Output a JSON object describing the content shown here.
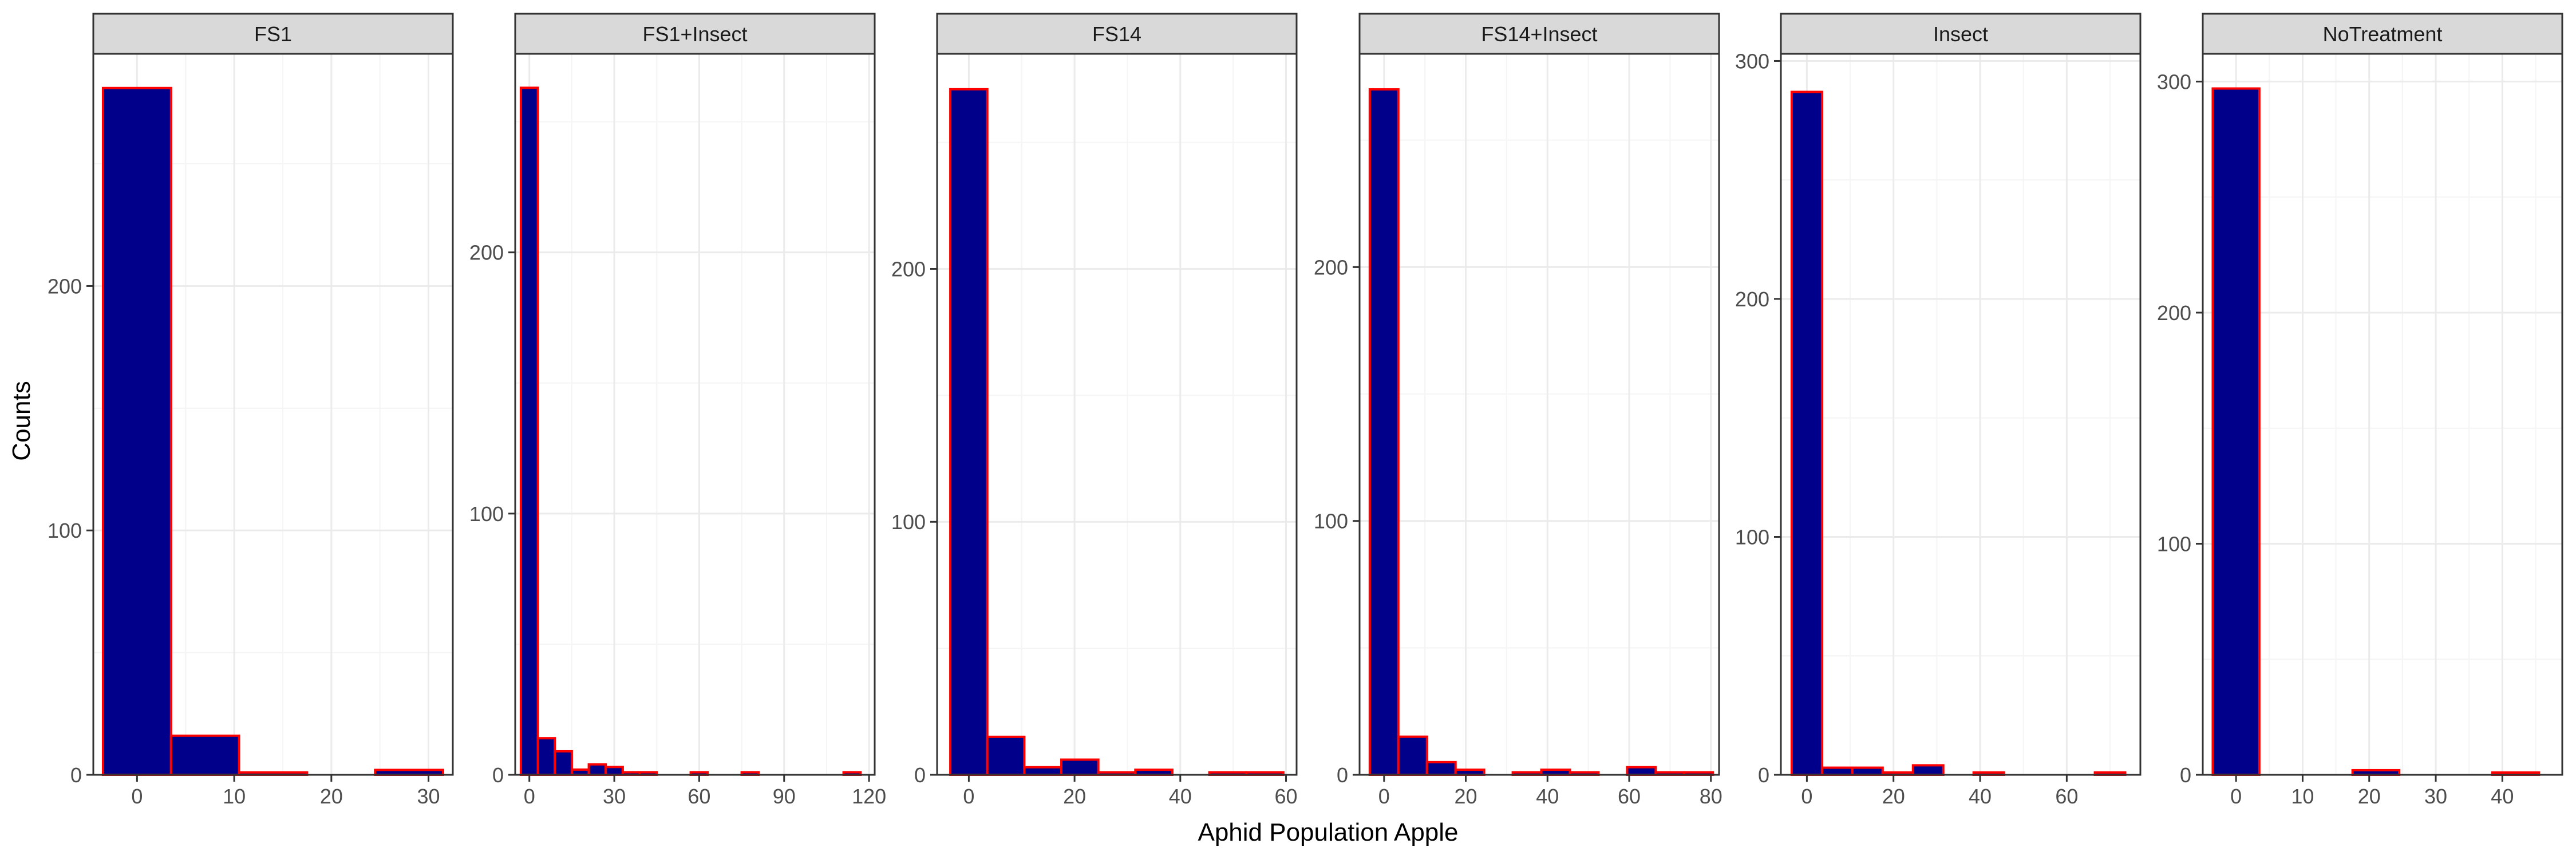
{
  "chart_data": {
    "type": "bar",
    "layout": "faceted histogram, one panel per treatment, free y scales",
    "xlabel": "Aphid Population Apple",
    "ylabel": "Counts",
    "grid": true,
    "colors": {
      "bar_fill": "#00008B",
      "bar_outline": "#FF0000",
      "strip_fill": "#D9D9D9",
      "grid_major": "#EBEBEB",
      "grid_minor": "#F5F5F5"
    },
    "facets": [
      {
        "name": "FS1",
        "xlim": [
          -4.5,
          32.5
        ],
        "ylim": [
          0,
          295
        ],
        "x_ticks": [
          0,
          10,
          20,
          30
        ],
        "y_ticks": [
          0,
          100,
          200
        ],
        "bins": [
          {
            "x0": -3.5,
            "x1": 3.5,
            "count": 281
          },
          {
            "x0": 3.5,
            "x1": 10.5,
            "count": 16
          },
          {
            "x0": 10.5,
            "x1": 17.5,
            "count": 1
          },
          {
            "x0": 17.5,
            "x1": 24.5,
            "count": 0
          },
          {
            "x0": 24.5,
            "x1": 31.5,
            "count": 2
          }
        ]
      },
      {
        "name": "FS1+Insect",
        "xlim": [
          -5,
          122
        ],
        "ylim": [
          0,
          276
        ],
        "x_ticks": [
          0,
          30,
          60,
          90,
          120
        ],
        "y_ticks": [
          0,
          100,
          200
        ],
        "bins": [
          {
            "x0": -3,
            "x1": 3,
            "count": 263
          },
          {
            "x0": 3,
            "x1": 9,
            "count": 14
          },
          {
            "x0": 9,
            "x1": 15,
            "count": 9
          },
          {
            "x0": 15,
            "x1": 21,
            "count": 2
          },
          {
            "x0": 21,
            "x1": 27,
            "count": 4
          },
          {
            "x0": 27,
            "x1": 33,
            "count": 3
          },
          {
            "x0": 33,
            "x1": 39,
            "count": 1
          },
          {
            "x0": 39,
            "x1": 45,
            "count": 1
          },
          {
            "x0": 45,
            "x1": 51,
            "count": 0
          },
          {
            "x0": 51,
            "x1": 57,
            "count": 0
          },
          {
            "x0": 57,
            "x1": 63,
            "count": 1
          },
          {
            "x0": 63,
            "x1": 69,
            "count": 0
          },
          {
            "x0": 69,
            "x1": 75,
            "count": 0
          },
          {
            "x0": 75,
            "x1": 81,
            "count": 1
          },
          {
            "x0": 81,
            "x1": 87,
            "count": 0
          },
          {
            "x0": 87,
            "x1": 93,
            "count": 0
          },
          {
            "x0": 93,
            "x1": 99,
            "count": 0
          },
          {
            "x0": 99,
            "x1": 105,
            "count": 0
          },
          {
            "x0": 105,
            "x1": 111,
            "count": 0
          },
          {
            "x0": 111,
            "x1": 117,
            "count": 1
          }
        ]
      },
      {
        "name": "FS14",
        "xlim": [
          -6,
          62
        ],
        "ylim": [
          0,
          285
        ],
        "x_ticks": [
          0,
          20,
          40,
          60
        ],
        "y_ticks": [
          0,
          100,
          200
        ],
        "bins": [
          {
            "x0": -3.5,
            "x1": 3.5,
            "count": 271
          },
          {
            "x0": 3.5,
            "x1": 10.5,
            "count": 15
          },
          {
            "x0": 10.5,
            "x1": 17.5,
            "count": 3
          },
          {
            "x0": 17.5,
            "x1": 24.5,
            "count": 6
          },
          {
            "x0": 24.5,
            "x1": 31.5,
            "count": 1
          },
          {
            "x0": 31.5,
            "x1": 38.5,
            "count": 2
          },
          {
            "x0": 38.5,
            "x1": 45.5,
            "count": 0
          },
          {
            "x0": 45.5,
            "x1": 52.5,
            "count": 1
          },
          {
            "x0": 52.5,
            "x1": 59.5,
            "count": 1
          }
        ]
      },
      {
        "name": "FS14+Insect",
        "xlim": [
          -6,
          82
        ],
        "ylim": [
          0,
          284
        ],
        "x_ticks": [
          0,
          20,
          40,
          60,
          80
        ],
        "y_ticks": [
          0,
          100,
          200
        ],
        "bins": [
          {
            "x0": -3.5,
            "x1": 3.5,
            "count": 270
          },
          {
            "x0": 3.5,
            "x1": 10.5,
            "count": 15
          },
          {
            "x0": 10.5,
            "x1": 17.5,
            "count": 5
          },
          {
            "x0": 17.5,
            "x1": 24.5,
            "count": 2
          },
          {
            "x0": 24.5,
            "x1": 31.5,
            "count": 0
          },
          {
            "x0": 31.5,
            "x1": 38.5,
            "count": 1
          },
          {
            "x0": 38.5,
            "x1": 45.5,
            "count": 2
          },
          {
            "x0": 45.5,
            "x1": 52.5,
            "count": 1
          },
          {
            "x0": 52.5,
            "x1": 59.5,
            "count": 0
          },
          {
            "x0": 59.5,
            "x1": 66.5,
            "count": 3
          },
          {
            "x0": 66.5,
            "x1": 73.5,
            "count": 1
          },
          {
            "x0": 73.5,
            "x1": 80.5,
            "count": 1
          }
        ]
      },
      {
        "name": "Insect",
        "xlim": [
          -6,
          77
        ],
        "ylim": [
          0,
          303
        ],
        "x_ticks": [
          0,
          20,
          40,
          60
        ],
        "y_ticks": [
          0,
          100,
          200,
          300
        ],
        "bins": [
          {
            "x0": -3.5,
            "x1": 3.5,
            "count": 287
          },
          {
            "x0": 3.5,
            "x1": 10.5,
            "count": 3
          },
          {
            "x0": 10.5,
            "x1": 17.5,
            "count": 3
          },
          {
            "x0": 17.5,
            "x1": 24.5,
            "count": 1
          },
          {
            "x0": 24.5,
            "x1": 31.5,
            "count": 4
          },
          {
            "x0": 31.5,
            "x1": 38.5,
            "count": 0
          },
          {
            "x0": 38.5,
            "x1": 45.5,
            "count": 1
          },
          {
            "x0": 45.5,
            "x1": 52.5,
            "count": 0
          },
          {
            "x0": 52.5,
            "x1": 59.5,
            "count": 0
          },
          {
            "x0": 59.5,
            "x1": 66.5,
            "count": 0
          },
          {
            "x0": 66.5,
            "x1": 73.5,
            "count": 1
          }
        ]
      },
      {
        "name": "NoTreatment",
        "xlim": [
          -5,
          49
        ],
        "ylim": [
          0,
          312
        ],
        "x_ticks": [
          0,
          10,
          20,
          30,
          40
        ],
        "y_ticks": [
          0,
          100,
          200,
          300
        ],
        "bins": [
          {
            "x0": -3.5,
            "x1": 3.5,
            "count": 297
          },
          {
            "x0": 3.5,
            "x1": 10.5,
            "count": 0
          },
          {
            "x0": 10.5,
            "x1": 17.5,
            "count": 0
          },
          {
            "x0": 17.5,
            "x1": 24.5,
            "count": 2
          },
          {
            "x0": 24.5,
            "x1": 31.5,
            "count": 0
          },
          {
            "x0": 31.5,
            "x1": 38.5,
            "count": 0
          },
          {
            "x0": 38.5,
            "x1": 45.5,
            "count": 1
          }
        ]
      }
    ]
  }
}
